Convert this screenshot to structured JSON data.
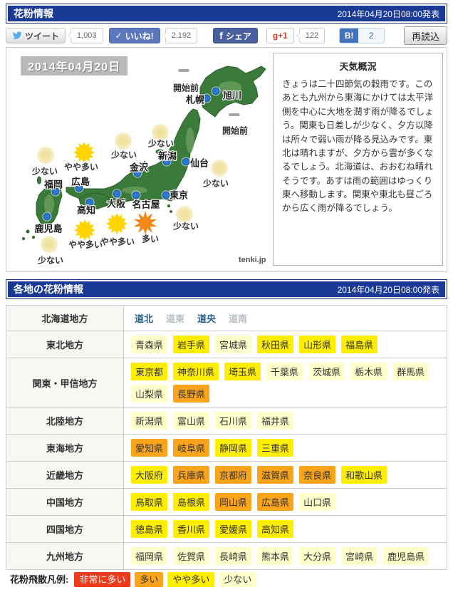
{
  "header_bar": {
    "title": "花粉情報",
    "published": "2014年04月20日08:00発表"
  },
  "social_bar": {
    "tweet": {
      "label": "ツイート",
      "count": "1,003"
    },
    "like": {
      "label": "いいね!",
      "check": "✓",
      "count": "2,192"
    },
    "share": {
      "label": "シェア",
      "f": "f"
    },
    "gplus": {
      "label": "g+1",
      "count": "122"
    },
    "hatena": {
      "label": "B!",
      "count": "2"
    },
    "reload": {
      "label": "再読込"
    }
  },
  "map_panel": {
    "date_label": "2014年04月20日",
    "credit": "tenki.jp",
    "cities": [
      {
        "name": "旭川",
        "dot": [
          294,
          61
        ],
        "label": [
          317,
          66
        ]
      },
      {
        "name": "札幌",
        "dot": [
          281,
          71
        ],
        "label": [
          265,
          72
        ]
      },
      {
        "name": "新潟",
        "dot": [
          225,
          160
        ],
        "label": [
          226,
          151
        ]
      },
      {
        "name": "仙台",
        "dot": [
          252,
          160
        ],
        "label": [
          271,
          161
        ]
      },
      {
        "name": "金沢",
        "dot": [
          184,
          176
        ],
        "label": [
          186,
          167
        ]
      },
      {
        "name": "東京",
        "dot": [
          224,
          207
        ],
        "label": [
          242,
          206
        ]
      },
      {
        "name": "名古屋",
        "dot": [
          182,
          207
        ],
        "label": [
          196,
          219
        ]
      },
      {
        "name": "大阪",
        "dot": [
          155,
          205
        ],
        "label": [
          154,
          218
        ]
      },
      {
        "name": "広島",
        "dot": [
          102,
          197
        ],
        "label": [
          104,
          187
        ]
      },
      {
        "name": "高知",
        "dot": [
          117,
          217
        ],
        "label": [
          112,
          227
        ]
      },
      {
        "name": "福岡",
        "dot": [
          69,
          202
        ],
        "label": [
          66,
          191
        ]
      },
      {
        "name": "鹿児島",
        "dot": [
          57,
          237
        ],
        "label": [
          59,
          253
        ]
      }
    ],
    "levels": [
      {
        "level": "開始前",
        "icon": [
          249,
          32
        ],
        "label": [
          252,
          56
        ]
      },
      {
        "level": "開始前",
        "icon": [
          320,
          94
        ],
        "label": [
          321,
          116
        ]
      },
      {
        "level": "少ない",
        "icon": [
          216,
          119
        ],
        "label": [
          217,
          134
        ]
      },
      {
        "level": "少ない",
        "icon": [
          164,
          131
        ],
        "label": [
          165,
          150
        ]
      },
      {
        "level": "少ない",
        "icon": [
          55,
          151
        ],
        "label": [
          54,
          173
        ]
      },
      {
        "level": "少ない",
        "icon": [
          299,
          169
        ],
        "label": [
          294,
          190
        ]
      },
      {
        "level": "少ない",
        "icon": [
          250,
          234
        ],
        "label": [
          252,
          250
        ]
      },
      {
        "level": "少ない",
        "icon": [
          60,
          276
        ],
        "label": [
          62,
          298
        ]
      },
      {
        "level": "やや多い",
        "icon": [
          109,
          147
        ],
        "label": [
          105,
          167
        ]
      },
      {
        "level": "やや多い",
        "icon": [
          110,
          256
        ],
        "label": [
          111,
          276
        ]
      },
      {
        "level": "やや多い",
        "icon": [
          155,
          247
        ],
        "label": [
          156,
          272
        ]
      },
      {
        "level": "多い",
        "icon": [
          195,
          246
        ],
        "label": [
          202,
          268
        ]
      }
    ]
  },
  "weather_box": {
    "title": "天気概況",
    "body": "きょうは二十四節気の穀雨です。このあとも九州から東海にかけては太平洋側を中心に大地を潤す雨が降るでしょう。関東も日差しが少なく、夕方以降は所々で弱い雨が降る見込みです。東北は晴れますが、夕方から雲が多くなるでしょう。北海道は、おおむね晴れそうです。あすは雨の範囲はゆっくり東へ移動します。関東や東北も昼ごろから広く雨が降るでしょう。"
  },
  "section_bar": {
    "title": "各地の花粉情報",
    "published": "2014年04月20日08:00発表"
  },
  "pollen_table": {
    "regions": [
      {
        "name": "北海道地方",
        "links": [
          {
            "label": "道北",
            "active": true
          },
          {
            "label": "道東",
            "active": false
          },
          {
            "label": "道央",
            "active": true
          },
          {
            "label": "道南",
            "active": false
          }
        ]
      },
      {
        "name": "東北地方",
        "prefectures": [
          {
            "label": "青森県",
            "level": "low"
          },
          {
            "label": "岩手県",
            "level": "medium"
          },
          {
            "label": "宮城県",
            "level": "low"
          },
          {
            "label": "秋田県",
            "level": "medium"
          },
          {
            "label": "山形県",
            "level": "medium"
          },
          {
            "label": "福島県",
            "level": "medium"
          }
        ]
      },
      {
        "name": "関東・甲信地方",
        "prefectures": [
          {
            "label": "東京都",
            "level": "medium"
          },
          {
            "label": "神奈川県",
            "level": "medium"
          },
          {
            "label": "埼玉県",
            "level": "medium"
          },
          {
            "label": "千葉県",
            "level": "low"
          },
          {
            "label": "茨城県",
            "level": "low"
          },
          {
            "label": "栃木県",
            "level": "low"
          },
          {
            "label": "群馬県",
            "level": "low"
          },
          {
            "label": "山梨県",
            "level": "low"
          },
          {
            "label": "長野県",
            "level": "high"
          }
        ]
      },
      {
        "name": "北陸地方",
        "prefectures": [
          {
            "label": "新潟県",
            "level": "low"
          },
          {
            "label": "富山県",
            "level": "low"
          },
          {
            "label": "石川県",
            "level": "low"
          },
          {
            "label": "福井県",
            "level": "low"
          }
        ]
      },
      {
        "name": "東海地方",
        "prefectures": [
          {
            "label": "愛知県",
            "level": "high"
          },
          {
            "label": "岐阜県",
            "level": "high"
          },
          {
            "label": "静岡県",
            "level": "medium"
          },
          {
            "label": "三重県",
            "level": "medium"
          }
        ]
      },
      {
        "name": "近畿地方",
        "prefectures": [
          {
            "label": "大阪府",
            "level": "medium"
          },
          {
            "label": "兵庫県",
            "level": "high"
          },
          {
            "label": "京都府",
            "level": "high"
          },
          {
            "label": "滋賀県",
            "level": "high"
          },
          {
            "label": "奈良県",
            "level": "high"
          },
          {
            "label": "和歌山県",
            "level": "medium"
          }
        ]
      },
      {
        "name": "中国地方",
        "prefectures": [
          {
            "label": "鳥取県",
            "level": "medium"
          },
          {
            "label": "島根県",
            "level": "medium"
          },
          {
            "label": "岡山県",
            "level": "high"
          },
          {
            "label": "広島県",
            "level": "high"
          },
          {
            "label": "山口県",
            "level": "low"
          }
        ]
      },
      {
        "name": "四国地方",
        "prefectures": [
          {
            "label": "徳島県",
            "level": "medium"
          },
          {
            "label": "香川県",
            "level": "medium"
          },
          {
            "label": "愛媛県",
            "level": "medium"
          },
          {
            "label": "高知県",
            "level": "medium"
          }
        ]
      },
      {
        "name": "九州地方",
        "prefectures": [
          {
            "label": "福岡県",
            "level": "low"
          },
          {
            "label": "佐賀県",
            "level": "low"
          },
          {
            "label": "長崎県",
            "level": "low"
          },
          {
            "label": "熊本県",
            "level": "low"
          },
          {
            "label": "大分県",
            "level": "low"
          },
          {
            "label": "宮崎県",
            "level": "low"
          },
          {
            "label": "鹿児島県",
            "level": "low"
          }
        ]
      }
    ]
  },
  "legend": {
    "label": "花粉飛散凡例:",
    "items": [
      {
        "label": "非常に多い",
        "level": "very_high"
      },
      {
        "label": "多い",
        "level": "high"
      },
      {
        "label": "やや多い",
        "level": "medium"
      },
      {
        "label": "少ない",
        "level": "low"
      }
    ]
  },
  "level_colors": {
    "very_high": "#ef3b1d",
    "high": "#f9a41b",
    "medium": "#ffee00",
    "low": "#ffffcc"
  },
  "map_icon_colors": {
    "sun_medium": "#ffd400",
    "sun_high": "#f0891a"
  }
}
